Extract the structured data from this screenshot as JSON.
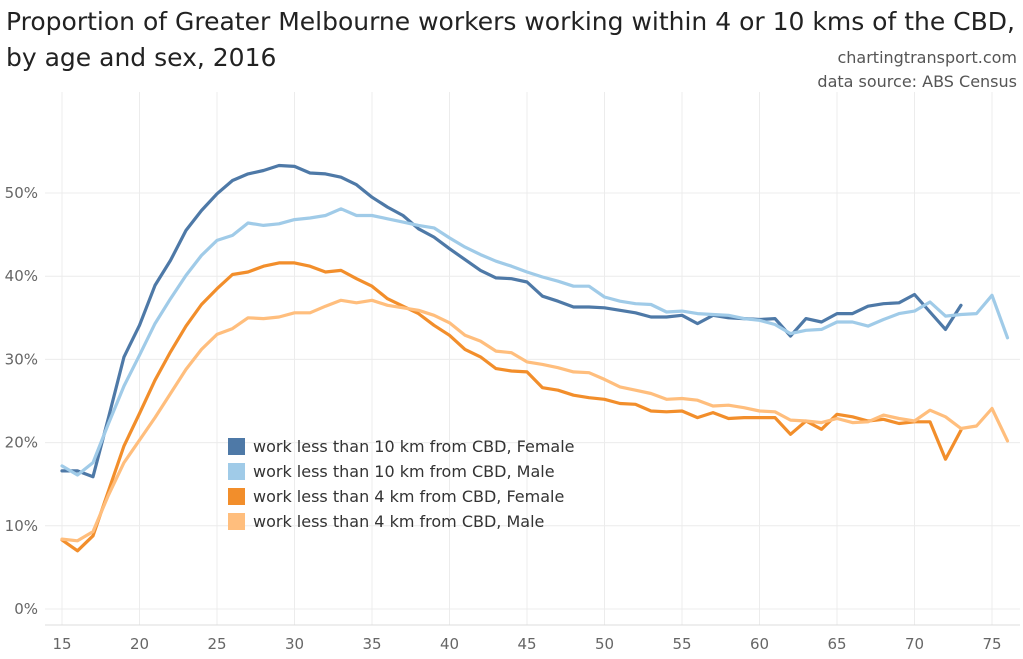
{
  "header": {
    "title": "Proportion of Greater Melbourne workers working within 4 or 10 kms of the CBD, by age and sex, 2016",
    "credit_site": "chartingtransport.com",
    "credit_source": "data source: ABS Census"
  },
  "chart_data": {
    "type": "line",
    "title": "Proportion of Greater Melbourne workers working within 4 or 10 kms of the CBD, by age and sex, 2016",
    "xlabel": "",
    "ylabel": "",
    "xlim": [
      14.5,
      76.5
    ],
    "ylim": [
      0,
      55
    ],
    "x_ticks": [
      15,
      20,
      25,
      30,
      35,
      40,
      45,
      50,
      55,
      60,
      65,
      70,
      75
    ],
    "y_ticks": [
      0,
      10,
      20,
      30,
      40,
      50
    ],
    "y_tick_labels": [
      "0%",
      "10%",
      "20%",
      "30%",
      "40%",
      "50%"
    ],
    "grid": true,
    "legend_position": "bottom-left inside plot",
    "series": [
      {
        "name": "work less than 10 km from CBD, Female",
        "color": "#4e79a7",
        "x": [
          15,
          16,
          17,
          18,
          19,
          20,
          21,
          22,
          23,
          24,
          25,
          26,
          27,
          28,
          29,
          30,
          31,
          32,
          33,
          34,
          35,
          36,
          37,
          38,
          39,
          40,
          41,
          42,
          43,
          44,
          45,
          46,
          47,
          48,
          49,
          50,
          51,
          52,
          53,
          54,
          55,
          56,
          57,
          58,
          59,
          60,
          61,
          62,
          63,
          64,
          65,
          66,
          67,
          68,
          69,
          70,
          71,
          72,
          73
        ],
        "y": [
          16.6,
          16.6,
          15.9,
          23.0,
          30.3,
          34.1,
          38.9,
          41.9,
          45.5,
          47.9,
          49.9,
          51.5,
          52.3,
          52.7,
          53.3,
          53.2,
          52.4,
          52.3,
          51.9,
          51.0,
          49.5,
          48.3,
          47.3,
          45.7,
          44.7,
          43.3,
          42.0,
          40.7,
          39.8,
          39.7,
          39.3,
          37.6,
          37.0,
          36.3,
          36.3,
          36.2,
          35.9,
          35.6,
          35.1,
          35.1,
          35.3,
          34.3,
          35.3,
          35.0,
          34.9,
          34.8,
          34.9,
          32.8,
          34.9,
          34.5,
          35.5,
          35.5,
          36.4,
          36.7,
          36.8,
          37.8,
          35.7,
          33.6,
          36.5
        ]
      },
      {
        "name": "work less than 10 km from CBD, Male",
        "color": "#a0cbe8",
        "x": [
          15,
          16,
          17,
          18,
          19,
          20,
          21,
          22,
          23,
          24,
          25,
          26,
          27,
          28,
          29,
          30,
          31,
          32,
          33,
          34,
          35,
          36,
          37,
          38,
          39,
          40,
          41,
          42,
          43,
          44,
          45,
          46,
          47,
          48,
          49,
          50,
          51,
          52,
          53,
          54,
          55,
          56,
          57,
          58,
          59,
          60,
          61,
          62,
          63,
          64,
          65,
          66,
          67,
          68,
          69,
          70,
          71,
          72,
          73,
          74,
          75,
          76
        ],
        "y": [
          17.2,
          16.1,
          17.6,
          22.3,
          26.8,
          30.5,
          34.3,
          37.3,
          40.1,
          42.5,
          44.3,
          44.9,
          46.4,
          46.1,
          46.3,
          46.8,
          47.0,
          47.3,
          48.1,
          47.3,
          47.3,
          46.9,
          46.5,
          46.1,
          45.8,
          44.6,
          43.5,
          42.6,
          41.8,
          41.2,
          40.5,
          39.9,
          39.4,
          38.8,
          38.8,
          37.5,
          37.0,
          36.7,
          36.6,
          35.7,
          35.8,
          35.5,
          35.4,
          35.3,
          34.9,
          34.7,
          34.2,
          33.1,
          33.5,
          33.6,
          34.5,
          34.5,
          34.0,
          34.8,
          35.5,
          35.8,
          36.9,
          35.2,
          35.4,
          35.5,
          37.7,
          32.6
        ]
      },
      {
        "name": "work less than 4 km from CBD, Female",
        "color": "#f28e2b",
        "x": [
          15,
          16,
          17,
          18,
          19,
          20,
          21,
          22,
          23,
          24,
          25,
          26,
          27,
          28,
          29,
          30,
          31,
          32,
          33,
          34,
          35,
          36,
          37,
          38,
          39,
          40,
          41,
          42,
          43,
          44,
          45,
          46,
          47,
          48,
          49,
          50,
          51,
          52,
          53,
          54,
          55,
          56,
          57,
          58,
          59,
          60,
          61,
          62,
          63,
          64,
          65,
          66,
          67,
          68,
          69,
          70,
          71,
          72,
          73
        ],
        "y": [
          8.3,
          7.0,
          8.8,
          14.2,
          19.6,
          23.5,
          27.5,
          30.9,
          34.0,
          36.6,
          38.5,
          40.2,
          40.5,
          41.2,
          41.6,
          41.6,
          41.2,
          40.5,
          40.7,
          39.7,
          38.8,
          37.3,
          36.4,
          35.5,
          34.1,
          32.9,
          31.2,
          30.3,
          28.9,
          28.6,
          28.5,
          26.6,
          26.3,
          25.7,
          25.4,
          25.2,
          24.7,
          24.6,
          23.8,
          23.7,
          23.8,
          23.0,
          23.6,
          22.9,
          23.0,
          23.0,
          23.0,
          21.0,
          22.6,
          21.6,
          23.4,
          23.1,
          22.6,
          22.8,
          22.3,
          22.5,
          22.5,
          18.0,
          21.5
        ]
      },
      {
        "name": "work less than 4 km from CBD, Male",
        "color": "#ffbe7d",
        "x": [
          15,
          16,
          17,
          18,
          19,
          20,
          21,
          22,
          23,
          24,
          25,
          26,
          27,
          28,
          29,
          30,
          31,
          32,
          33,
          34,
          35,
          36,
          37,
          38,
          39,
          40,
          41,
          42,
          43,
          44,
          45,
          46,
          47,
          48,
          49,
          50,
          51,
          52,
          53,
          54,
          55,
          56,
          57,
          58,
          59,
          60,
          61,
          62,
          63,
          64,
          65,
          66,
          67,
          68,
          69,
          70,
          71,
          72,
          73,
          74,
          75,
          76
        ],
        "y": [
          8.4,
          8.2,
          9.3,
          13.7,
          17.6,
          20.3,
          23.0,
          25.9,
          28.8,
          31.2,
          33.0,
          33.7,
          35.0,
          34.9,
          35.1,
          35.6,
          35.6,
          36.4,
          37.1,
          36.8,
          37.1,
          36.5,
          36.2,
          35.9,
          35.3,
          34.4,
          32.9,
          32.2,
          31.0,
          30.8,
          29.7,
          29.4,
          29.0,
          28.5,
          28.4,
          27.6,
          26.7,
          26.3,
          25.9,
          25.2,
          25.3,
          25.1,
          24.4,
          24.5,
          24.2,
          23.8,
          23.7,
          22.7,
          22.6,
          22.4,
          22.9,
          22.4,
          22.5,
          23.3,
          22.9,
          22.6,
          23.9,
          23.1,
          21.7,
          22.0,
          24.1,
          20.2
        ]
      }
    ]
  }
}
